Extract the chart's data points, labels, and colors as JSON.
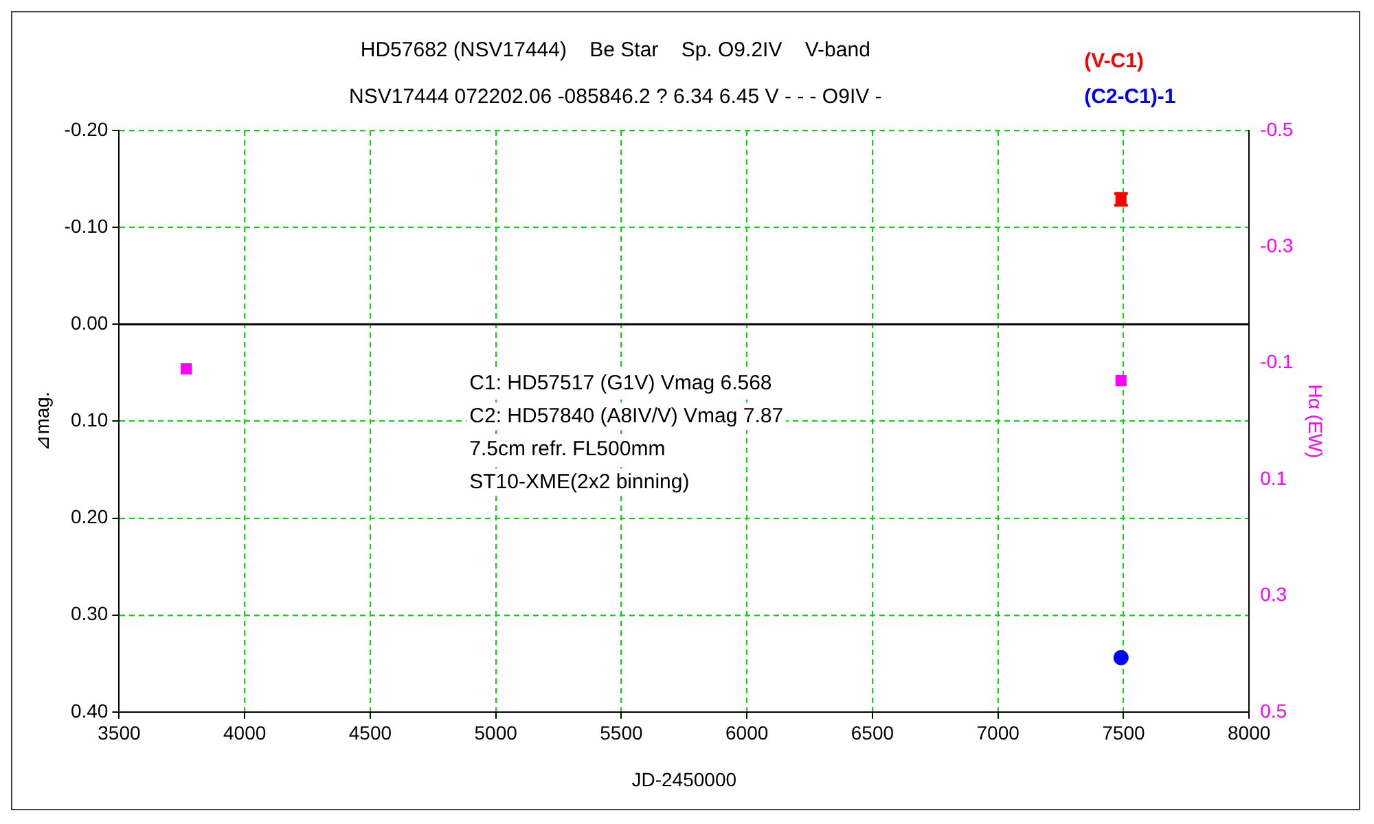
{
  "chart_data": {
    "type": "scatter",
    "title": "HD57682 (NSV17444)    Be Star    Sp. O9.2IV    V-band",
    "subtitle": "NSV17444 072202.06 -085846.2 ? 6.34 6.45 V - - - O9IV -",
    "xlabel": "JD-2450000",
    "ylabel": "⊿mag.",
    "y2label": "Hα (EW)",
    "series": [
      {
        "name": "(V-C1)",
        "color": "#ff0000",
        "marker": "square",
        "values": [
          null,
          -0.129
        ],
        "errors": [
          null,
          0.006
        ]
      },
      {
        "name": "(C2-C1)-1",
        "color": "#0000ff",
        "marker": "circle",
        "values": [
          null,
          0.344
        ]
      },
      {
        "color": "#ff00ff",
        "marker": "square",
        "axis": "y2",
        "values": [
          -0.09,
          -0.07
        ]
      }
    ],
    "x": [
      3767,
      7490
    ],
    "xlim": [
      3500,
      8000
    ],
    "xticks": [
      3500,
      4000,
      4500,
      5000,
      5500,
      6000,
      6500,
      7000,
      7500,
      8000
    ],
    "ylim": [
      0.4,
      -0.2
    ],
    "yticks": [
      {
        "value": -0.2,
        "label": "-0.20"
      },
      {
        "value": -0.1,
        "label": "-0.10"
      },
      {
        "value": 0,
        "label": "0.00"
      },
      {
        "value": 0.1,
        "label": "0.10"
      },
      {
        "value": 0.2,
        "label": "0.20"
      },
      {
        "value": 0.3,
        "label": "0.30"
      },
      {
        "value": 0.4,
        "label": "0.40"
      }
    ],
    "y2lim": [
      0.5,
      -0.5
    ],
    "y2ticks": [
      -0.5,
      -0.3,
      -0.1,
      0.1,
      0.3,
      0.5
    ],
    "ref_lines": [
      {
        "axis": "y",
        "value": 0,
        "color": "#000000"
      }
    ],
    "annotations": [
      "C1: HD57517 (G1V) Vmag 6.568",
      "C2: HD57840 (A8IV/V) Vmag 7.87",
      "7.5cm refr. FL500mm",
      "ST10-XME(2x2 binning)"
    ],
    "grid": true,
    "legend": "top right"
  }
}
